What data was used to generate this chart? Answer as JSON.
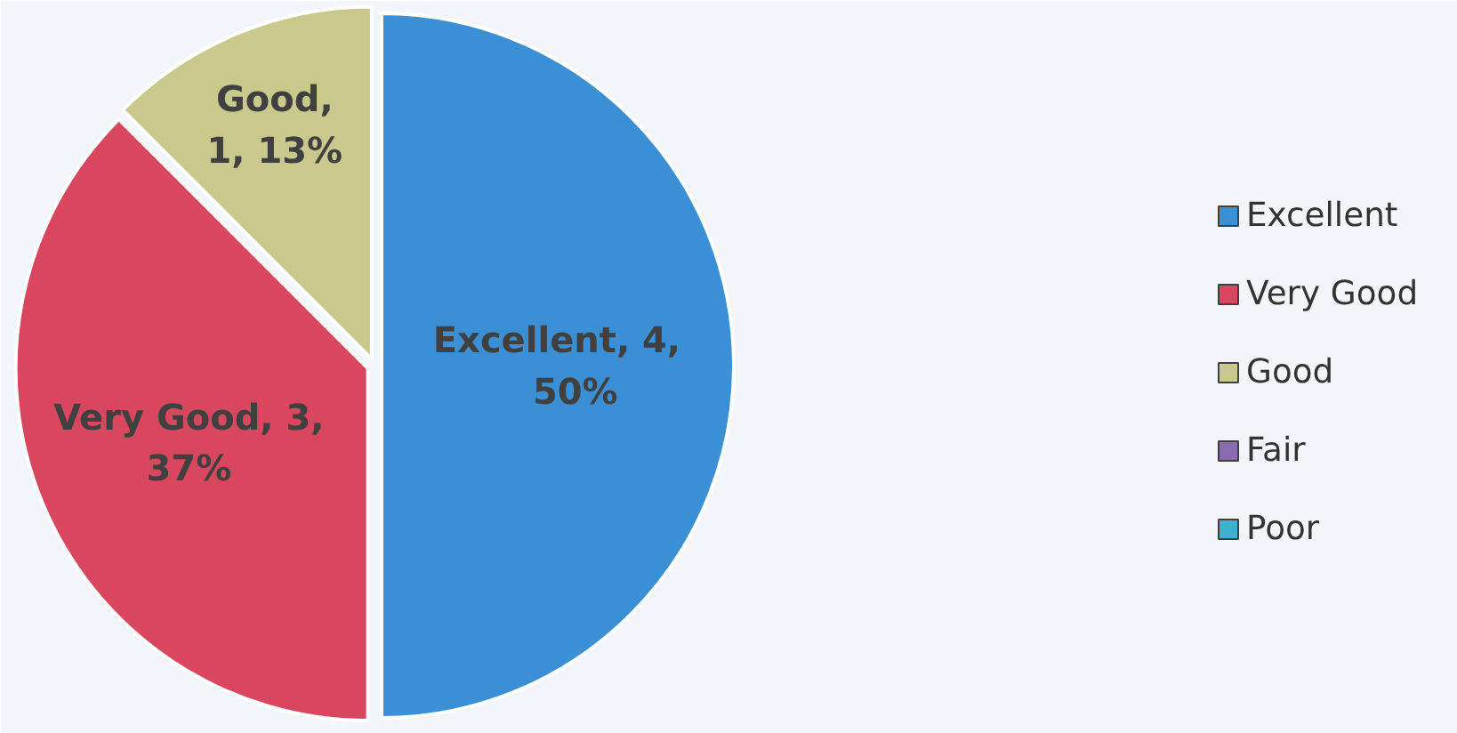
{
  "chart_data": {
    "type": "pie",
    "categories": [
      "Excellent",
      "Very Good",
      "Good",
      "Fair",
      "Poor"
    ],
    "values": [
      4,
      3,
      1,
      0,
      0
    ],
    "colors": [
      "#3b8fd4",
      "#d9475f",
      "#c9c98e",
      "#8a6bb0",
      "#3fb0d0"
    ],
    "value_labels": [
      "Excellent,    4,\n50%",
      "Very Good, 3,\n37%",
      "Good,\n1, 13%",
      null,
      null
    ],
    "legend": "right"
  }
}
